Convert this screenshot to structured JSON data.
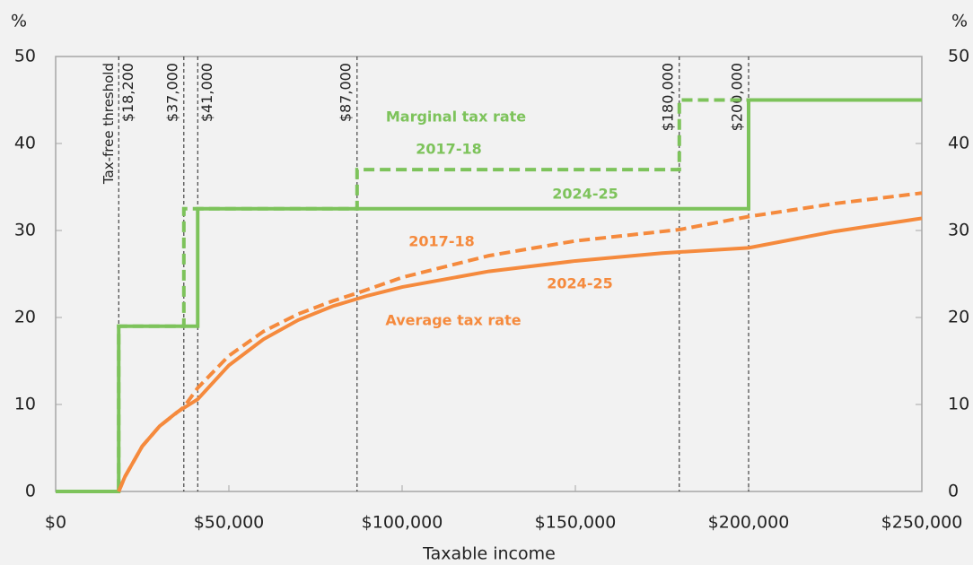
{
  "chart_data": {
    "type": "line",
    "ylabel": "%",
    "y2label": "%",
    "xlabel": "Taxable income",
    "xlim": [
      0,
      250000
    ],
    "xticks": [
      {
        "value": 0,
        "label": "$0"
      },
      {
        "value": 50000,
        "label": "$50,000"
      },
      {
        "value": 100000,
        "label": "$100,000"
      },
      {
        "value": 150000,
        "label": "$150,000"
      },
      {
        "value": 200000,
        "label": "$200,000"
      },
      {
        "value": 250000,
        "label": "$250,000"
      }
    ],
    "ylim": [
      0,
      50
    ],
    "yticks": [
      0,
      10,
      20,
      30,
      40,
      50
    ],
    "y2lim": [
      0,
      50
    ],
    "y2ticks": [
      0,
      10,
      20,
      30,
      40,
      50
    ],
    "group_labels": [
      "Marginal tax rate",
      "Average tax rate"
    ],
    "annotations": [
      {
        "x": 18200,
        "label": "$18,200",
        "note": "Tax-free threshold"
      },
      {
        "x": 37000,
        "label": "$37,000"
      },
      {
        "x": 41000,
        "label": "$41,000"
      },
      {
        "x": 87000,
        "label": "$87,000"
      },
      {
        "x": 180000,
        "label": "$180,000"
      },
      {
        "x": 200000,
        "label": "$200,000"
      }
    ],
    "series": [
      {
        "name": "2024-25",
        "color": "#7dc35b",
        "dashed": false,
        "x": [
          0,
          18200,
          18200,
          41000,
          41000,
          200000,
          200000,
          250000
        ],
        "values": [
          0,
          0,
          19,
          19,
          32.5,
          32.5,
          45,
          45
        ]
      },
      {
        "name": "2017-18",
        "color": "#7dc35b",
        "dashed": true,
        "x": [
          0,
          18200,
          18200,
          37000,
          37000,
          87000,
          87000,
          180000,
          180000,
          250000
        ],
        "values": [
          0,
          0,
          19,
          19,
          32.5,
          32.5,
          37,
          37,
          45,
          45
        ]
      },
      {
        "name": "2017-18",
        "color": "#f58a3d",
        "dashed": true,
        "x": [
          18200,
          20000,
          25000,
          30000,
          37000,
          41000,
          50000,
          60000,
          70000,
          80000,
          87000,
          100000,
          125000,
          150000,
          180000,
          200000,
          225000,
          250000
        ],
        "values": [
          0,
          1.7,
          5.2,
          7.5,
          9.7,
          11.9,
          15.6,
          18.4,
          20.4,
          21.9,
          22.8,
          24.6,
          27.1,
          28.8,
          30.1,
          31.6,
          33.1,
          34.3
        ]
      },
      {
        "name": "2024-25",
        "color": "#f58a3d",
        "dashed": false,
        "x": [
          18200,
          20000,
          25000,
          30000,
          35000,
          41000,
          50000,
          60000,
          70000,
          80000,
          90000,
          100000,
          125000,
          150000,
          175000,
          200000,
          225000,
          250000
        ],
        "values": [
          0,
          1.7,
          5.2,
          7.5,
          9.1,
          10.6,
          14.5,
          17.5,
          19.7,
          21.3,
          22.5,
          23.5,
          25.3,
          26.5,
          27.4,
          28.0,
          29.9,
          31.4
        ]
      }
    ]
  }
}
